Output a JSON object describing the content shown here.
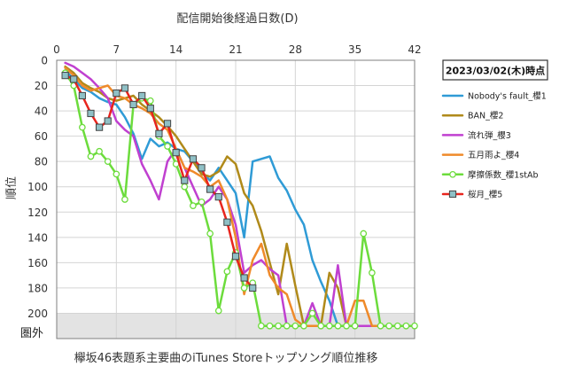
{
  "chart_data": {
    "type": "line",
    "title": "欅坂46表題系主要曲のiTunes Storeトップソング順位推移",
    "xlabel": "配信開始後経過日数(D)",
    "ylabel": "順位",
    "xlim": [
      0,
      42
    ],
    "ylim": [
      0,
      220
    ],
    "y_reversed": true,
    "x_axis_position": "top",
    "x_ticks": [
      0,
      7,
      14,
      21,
      28,
      35,
      42
    ],
    "y_ticks": [
      0,
      20,
      40,
      60,
      80,
      100,
      120,
      140,
      160,
      180,
      200
    ],
    "out_of_range_label": "圏外",
    "out_of_range_value": 210,
    "out_of_range_band": [
      200,
      220
    ],
    "legend_title": "2023/03/02(木)時点",
    "legend_position": "right",
    "grid": true,
    "series": [
      {
        "name": "Nobody's fault_櫻1",
        "color": "#2f9bd6",
        "marker": "none",
        "width": 2.5,
        "x": [
          1,
          2,
          3,
          4,
          5,
          6,
          7,
          8,
          9,
          10,
          11,
          12,
          13,
          14,
          15,
          16,
          17,
          18,
          19,
          20,
          21,
          22,
          23,
          24,
          25,
          26,
          27,
          28,
          29,
          30,
          31,
          32,
          33,
          34,
          35,
          36,
          37,
          38
        ],
        "y": [
          8,
          15,
          22,
          25,
          30,
          33,
          35,
          45,
          58,
          78,
          62,
          68,
          65,
          70,
          72,
          80,
          88,
          95,
          85,
          95,
          105,
          140,
          80,
          78,
          76,
          93,
          103,
          118,
          130,
          158,
          175,
          190,
          210,
          210,
          210,
          210,
          210,
          210
        ]
      },
      {
        "name": "BAN_櫻2",
        "color": "#b08a1a",
        "marker": "none",
        "width": 2.5,
        "x": [
          1,
          2,
          3,
          4,
          5,
          6,
          7,
          8,
          9,
          10,
          11,
          12,
          13,
          14,
          15,
          16,
          17,
          18,
          19,
          20,
          21,
          22,
          23,
          24,
          25,
          26,
          27,
          28,
          29,
          30,
          31,
          32,
          33,
          34,
          35,
          36,
          37,
          38
        ],
        "y": [
          5,
          10,
          18,
          22,
          25,
          30,
          32,
          30,
          28,
          35,
          40,
          45,
          52,
          60,
          70,
          80,
          90,
          92,
          88,
          76,
          82,
          105,
          115,
          135,
          160,
          185,
          145,
          178,
          210,
          210,
          210,
          168,
          180,
          210,
          210,
          210,
          210,
          210
        ]
      },
      {
        "name": "流れ弾_櫻3",
        "color": "#c040d0",
        "marker": "none",
        "width": 2.5,
        "x": [
          1,
          2,
          3,
          4,
          5,
          6,
          7,
          8,
          9,
          10,
          11,
          12,
          13,
          14,
          15,
          16,
          17,
          18,
          19,
          20,
          21,
          22,
          23,
          24,
          25,
          26,
          27,
          28,
          29,
          30,
          31,
          32,
          33,
          34,
          35,
          36,
          37,
          38
        ],
        "y": [
          2,
          5,
          10,
          15,
          22,
          30,
          48,
          55,
          60,
          82,
          95,
          110,
          80,
          70,
          85,
          100,
          115,
          110,
          100,
          110,
          130,
          168,
          162,
          158,
          165,
          170,
          210,
          210,
          210,
          192,
          210,
          210,
          162,
          210,
          210,
          210,
          210,
          210
        ]
      },
      {
        "name": "五月雨よ_櫻4",
        "color": "#ef8a2a",
        "marker": "none",
        "width": 2.5,
        "x": [
          1,
          2,
          3,
          4,
          5,
          6,
          7,
          8,
          9,
          10,
          11,
          12,
          13,
          14,
          15,
          16,
          17,
          18,
          19,
          20,
          21,
          22,
          23,
          24,
          25,
          26,
          27,
          28,
          29,
          30,
          31,
          32,
          33,
          34,
          35,
          36,
          37,
          38
        ],
        "y": [
          6,
          12,
          20,
          24,
          22,
          20,
          28,
          30,
          35,
          38,
          42,
          50,
          55,
          70,
          85,
          88,
          92,
          100,
          95,
          110,
          140,
          185,
          158,
          145,
          170,
          180,
          185,
          205,
          210,
          210,
          210,
          210,
          210,
          210,
          190,
          190,
          210,
          210
        ]
      },
      {
        "name": "摩擦係数_櫻1stAb",
        "color": "#6cdc3c",
        "marker": "circle",
        "width": 2.5,
        "x": [
          1,
          2,
          3,
          4,
          5,
          6,
          7,
          8,
          9,
          10,
          11,
          12,
          13,
          14,
          15,
          16,
          17,
          18,
          19,
          20,
          21,
          22,
          23,
          24,
          25,
          26,
          27,
          28,
          29,
          30,
          31,
          32,
          33,
          34,
          35,
          36,
          37,
          38,
          39,
          40,
          41,
          42
        ],
        "y": [
          10,
          20,
          53,
          76,
          72,
          80,
          90,
          110,
          35,
          30,
          32,
          60,
          68,
          82,
          100,
          115,
          112,
          137,
          198,
          167,
          152,
          180,
          176,
          210,
          210,
          210,
          210,
          210,
          210,
          200,
          210,
          210,
          210,
          210,
          210,
          137,
          168,
          210,
          210,
          210,
          210,
          210
        ]
      },
      {
        "name": "桜月_櫻5",
        "color": "#e8251e",
        "marker": "square",
        "width": 2.5,
        "x": [
          1,
          2,
          3,
          4,
          5,
          6,
          7,
          8,
          9,
          10,
          11,
          12,
          13,
          14,
          15,
          16,
          17,
          18,
          19,
          20,
          21,
          22,
          23
        ],
        "y": [
          12,
          15,
          28,
          42,
          53,
          48,
          26,
          22,
          35,
          28,
          38,
          58,
          50,
          73,
          95,
          78,
          85,
          102,
          108,
          128,
          155,
          172,
          180
        ]
      }
    ]
  }
}
